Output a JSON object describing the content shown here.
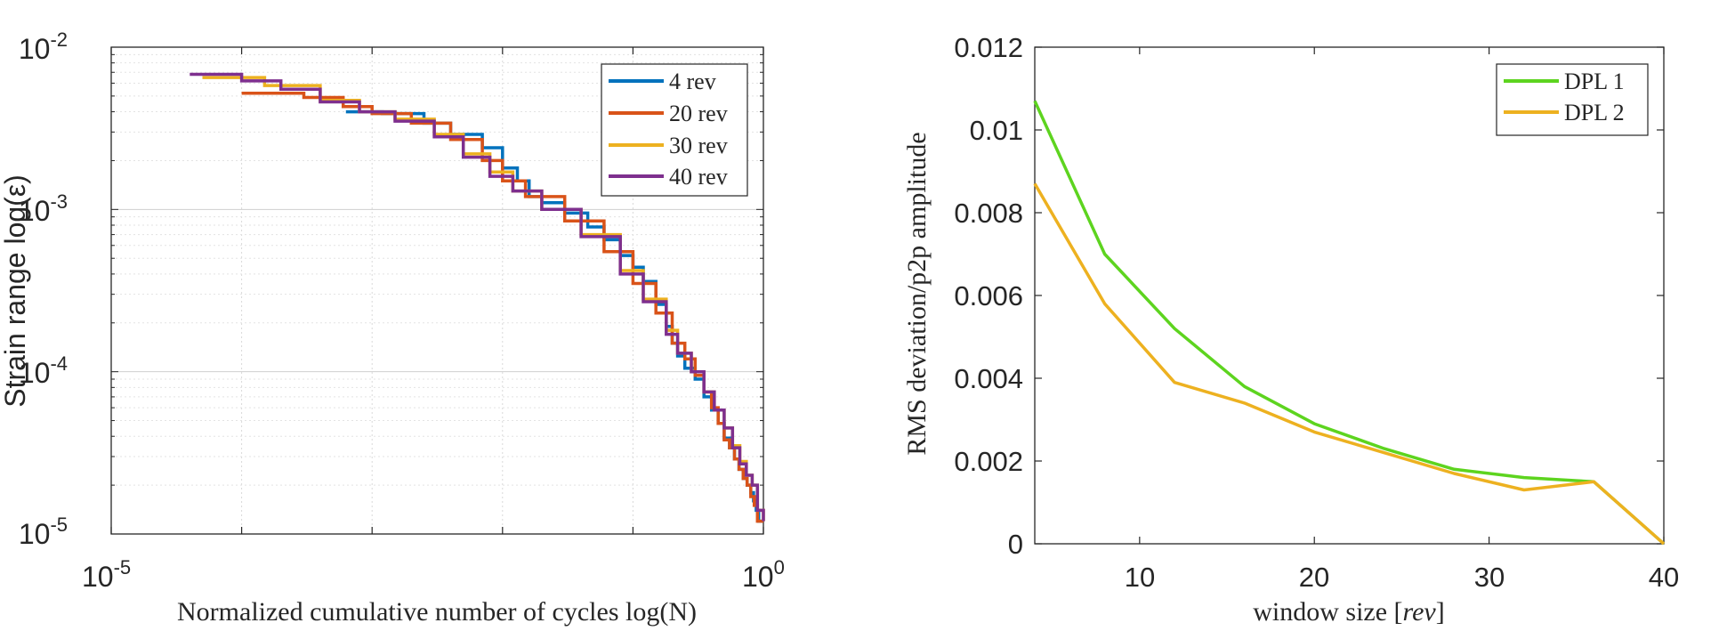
{
  "chart_data": [
    {
      "type": "line",
      "title": "",
      "xlabel": "Normalized cumulative number of cycles log(N)",
      "ylabel": "Strain range log(ε)",
      "xscale": "log",
      "yscale": "log",
      "xlim": [
        1e-05,
        1
      ],
      "ylim": [
        1e-05,
        0.01
      ],
      "x_ticks": [
        {
          "base": "10",
          "exp": "-5",
          "value": 1e-05
        },
        {
          "base": "10",
          "exp": "0",
          "value": 1
        }
      ],
      "y_ticks": [
        {
          "base": "10",
          "exp": "-5",
          "value": 1e-05
        },
        {
          "base": "10",
          "exp": "-4",
          "value": 0.0001
        },
        {
          "base": "10",
          "exp": "-3",
          "value": 0.001
        },
        {
          "base": "10",
          "exp": "-2",
          "value": 0.01
        }
      ],
      "grid": true,
      "legend_position": "top-right",
      "series": [
        {
          "name": "4 rev",
          "color": "#0072BD",
          "step": true,
          "x": [
            0.00063,
            0.0012,
            0.0025,
            0.004,
            0.007,
            0.01,
            0.013,
            0.016,
            0.02,
            0.03,
            0.045,
            0.06,
            0.08,
            0.1,
            0.12,
            0.15,
            0.18,
            0.2,
            0.22,
            0.25,
            0.3,
            0.35,
            0.4,
            0.45,
            0.5,
            0.55,
            0.6,
            0.65,
            0.7,
            0.75,
            0.8,
            0.84,
            0.88,
            0.92,
            1.0
          ],
          "y": [
            0.004,
            0.0039,
            0.0034,
            0.0029,
            0.0024,
            0.0018,
            0.0015,
            0.0012,
            0.0011,
            0.00095,
            0.00078,
            0.00065,
            0.00052,
            0.00044,
            0.00036,
            0.00026,
            0.00019,
            0.00015,
            0.000125,
            0.000105,
            9e-05,
            7e-05,
            5.8e-05,
            4.8e-05,
            3.9e-05,
            3.4e-05,
            2.9e-05,
            2.5e-05,
            2.2e-05,
            2e-05,
            1.8e-05,
            1.6e-05,
            1.4e-05,
            1.2e-05,
            1.2e-05
          ]
        },
        {
          "name": "20 rev",
          "color": "#D95319",
          "step": true,
          "x": [
            0.0001,
            0.0003,
            0.0006,
            0.001,
            0.002,
            0.004,
            0.007,
            0.01,
            0.015,
            0.03,
            0.06,
            0.1,
            0.15,
            0.2,
            0.25,
            0.3,
            0.35,
            0.4,
            0.45,
            0.5,
            0.55,
            0.6,
            0.65,
            0.7,
            0.75,
            0.8,
            0.85,
            0.9,
            1.0
          ],
          "y": [
            0.0052,
            0.0049,
            0.0043,
            0.0039,
            0.0034,
            0.0027,
            0.002,
            0.0015,
            0.0012,
            0.00085,
            0.00055,
            0.00035,
            0.00023,
            0.00015,
            0.00012,
            9.5e-05,
            7.5e-05,
            6e-05,
            4.8e-05,
            3.8e-05,
            3.4e-05,
            2.9e-05,
            2.5e-05,
            2.2e-05,
            2e-05,
            1.7e-05,
            1.5e-05,
            1.2e-05,
            1.2e-05
          ]
        },
        {
          "name": "30 rev",
          "color": "#EDB120",
          "step": true,
          "x": [
            5e-05,
            0.00015,
            0.0004,
            0.0008,
            0.0015,
            0.003,
            0.005,
            0.008,
            0.012,
            0.02,
            0.04,
            0.08,
            0.12,
            0.18,
            0.22,
            0.28,
            0.35,
            0.42,
            0.5,
            0.58,
            0.66,
            0.74,
            0.82,
            0.9,
            1.0
          ],
          "y": [
            0.0065,
            0.0058,
            0.0047,
            0.004,
            0.0036,
            0.0029,
            0.0022,
            0.0017,
            0.0013,
            0.001,
            0.0007,
            0.00042,
            0.00028,
            0.00018,
            0.00013,
            0.0001,
            7.5e-05,
            5.8e-05,
            4.5e-05,
            3.5e-05,
            2.8e-05,
            2.3e-05,
            2e-05,
            1.4e-05,
            1.2e-05
          ]
        },
        {
          "name": "40 rev",
          "color": "#7E2F8E",
          "step": true,
          "x": [
            4e-05,
            0.0001,
            0.0002,
            0.0004,
            0.0008,
            0.0015,
            0.003,
            0.005,
            0.008,
            0.012,
            0.02,
            0.04,
            0.08,
            0.12,
            0.18,
            0.22,
            0.28,
            0.35,
            0.42,
            0.5,
            0.58,
            0.66,
            0.74,
            0.82,
            0.9,
            1.0
          ],
          "y": [
            0.0068,
            0.0062,
            0.0055,
            0.0046,
            0.004,
            0.0035,
            0.0028,
            0.0021,
            0.0016,
            0.0013,
            0.001,
            0.00068,
            0.0004,
            0.00027,
            0.00017,
            0.00013,
            0.0001,
            7.5e-05,
            5.8e-05,
            4.5e-05,
            3.4e-05,
            2.7e-05,
            2.3e-05,
            2e-05,
            1.4e-05,
            1.2e-05
          ]
        }
      ]
    },
    {
      "type": "line",
      "title": "",
      "xlabel": "window size [rev]",
      "xlabel_plain": "window size [",
      "xlabel_unit": "rev",
      "xlabel_close": "]",
      "ylabel": "RMS deviation/p2p amplitude",
      "xlim": [
        4,
        40
      ],
      "ylim": [
        0,
        0.012
      ],
      "x_ticks": [
        "10",
        "20",
        "30",
        "40"
      ],
      "y_ticks": [
        "0",
        "0.002",
        "0.004",
        "0.006",
        "0.008",
        "0.01",
        "0.012"
      ],
      "grid": false,
      "legend_position": "top-right",
      "series": [
        {
          "name": "DPL 1",
          "color": "#5DD41F",
          "x": [
            4,
            8,
            12,
            16,
            20,
            24,
            28,
            32,
            36,
            40
          ],
          "y": [
            0.0107,
            0.007,
            0.0052,
            0.0038,
            0.0029,
            0.0023,
            0.0018,
            0.0016,
            0.0015,
            0.0
          ]
        },
        {
          "name": "DPL 2",
          "color": "#EDB120",
          "x": [
            4,
            8,
            12,
            16,
            20,
            24,
            28,
            32,
            36,
            40
          ],
          "y": [
            0.0087,
            0.0058,
            0.0039,
            0.0034,
            0.0027,
            0.0022,
            0.0017,
            0.0013,
            0.0015,
            0.0
          ]
        }
      ]
    }
  ]
}
